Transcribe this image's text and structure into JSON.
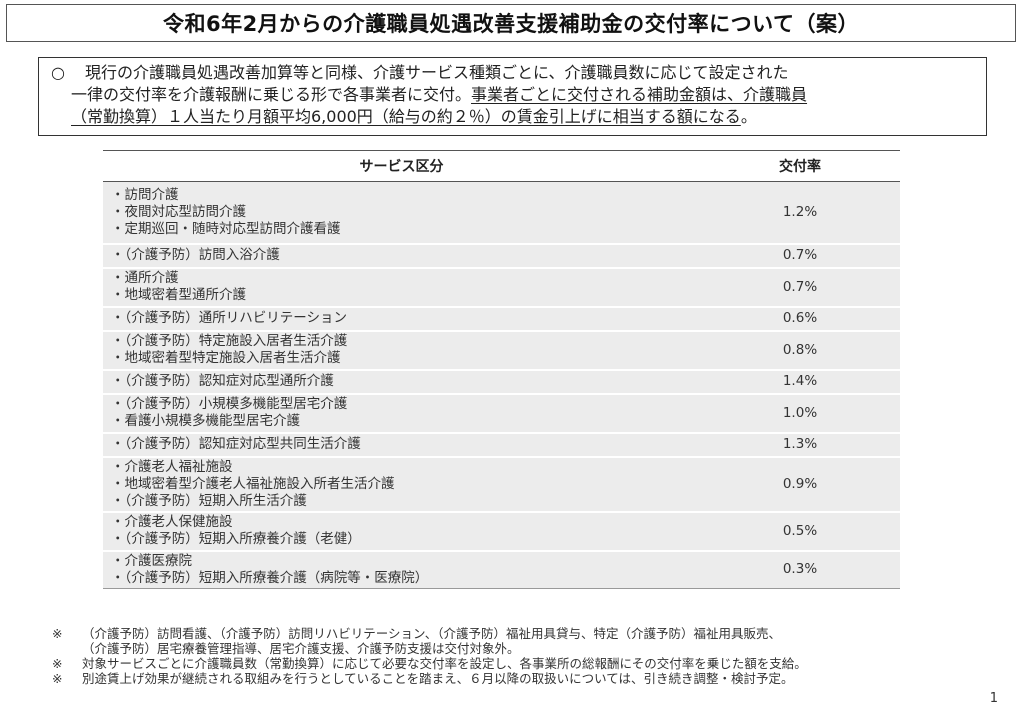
{
  "title": "令和6年2月からの介護職員処遇改善支援補助金の交付率について（案）",
  "summary": {
    "bullet": "○",
    "line1": "現行の介護職員処遇改善加算等と同様、介護サービス種類ごとに、介護職員数に応じて設定された",
    "line2_plain": "一律の交付率を介護報酬に乗じる形で各事業者に交付。",
    "line2_underlined": "事業者ごとに交付される補助金額は、介護職員",
    "line3_underlined": "（常勤換算）１人当たり月額平均6,000円（給与の約２％）の賃金引上げに相当する額になる",
    "line3_end": "。"
  },
  "table": {
    "headers": [
      "サービス区分",
      "交付率"
    ],
    "rows": [
      {
        "services": [
          "・訪問介護",
          "・夜間対応型訪問介護",
          "・定期巡回・随時対応型訪問介護看護"
        ],
        "rate": "1.2%"
      },
      {
        "services": [
          "・（介護予防）訪問入浴介護"
        ],
        "rate": "0.7%"
      },
      {
        "services": [
          "・通所介護",
          "・地域密着型通所介護"
        ],
        "rate": "0.7%"
      },
      {
        "services": [
          "・（介護予防）通所リハビリテーション"
        ],
        "rate": "0.6%"
      },
      {
        "services": [
          "・（介護予防）特定施設入居者生活介護",
          "・地域密着型特定施設入居者生活介護"
        ],
        "rate": "0.8%"
      },
      {
        "services": [
          "・（介護予防）認知症対応型通所介護"
        ],
        "rate": "1.4%"
      },
      {
        "services": [
          "・（介護予防）小規模多機能型居宅介護",
          "・看護小規模多機能型居宅介護"
        ],
        "rate": "1.0%"
      },
      {
        "services": [
          "・（介護予防）認知症対応型共同生活介護"
        ],
        "rate": "1.3%"
      },
      {
        "services": [
          "・介護老人福祉施設",
          "・地域密着型介護老人福祉施設入所者生活介護",
          "・（介護予防）短期入所生活介護"
        ],
        "rate": "0.9%"
      },
      {
        "services": [
          "・介護老人保健施設",
          "・（介護予防）短期入所療養介護（老健）"
        ],
        "rate": "0.5%"
      },
      {
        "services": [
          "・介護医療院",
          "・（介護予防）短期入所療養介護（病院等・医療院）"
        ],
        "rate": "0.3%"
      }
    ]
  },
  "notes": [
    {
      "mark": "※",
      "lines": [
        "（介護予防）訪問看護、（介護予防）訪問リハビリテーション、（介護予防）福祉用具貸与、特定（介護予防）福祉用具販売、",
        "（介護予防）居宅療養管理指導、居宅介護支援、介護予防支援は交付対象外。"
      ]
    },
    {
      "mark": "※",
      "lines": [
        "対象サービスごとに介護職員数（常勤換算）に応じて必要な交付率を設定し、各事業所の総報酬にその交付率を乗じた額を支給。"
      ]
    },
    {
      "mark": "※",
      "lines": [
        "別途賃上げ効果が継続される取組みを行うとしていることを踏まえ、６月以降の取扱いについては、引き続き調整・検討予定。"
      ]
    }
  ],
  "page_number": "1"
}
